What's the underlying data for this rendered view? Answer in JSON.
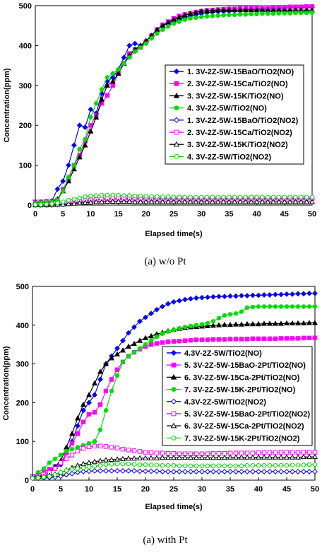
{
  "captions": [
    "(a)  w/o  Pt",
    "(a)  with  Pt"
  ],
  "chart_data": [
    {
      "type": "line",
      "title": "",
      "xlabel": "Elapsed time(s)",
      "ylabel": "Concentration(ppm)",
      "xlim": [
        0,
        50
      ],
      "ylim": [
        0,
        500
      ],
      "xticks": [
        0,
        5,
        10,
        15,
        20,
        25,
        30,
        35,
        40,
        45,
        50
      ],
      "yticks": [
        0,
        100,
        200,
        300,
        400,
        500
      ],
      "legend_position": "right",
      "x": [
        0,
        1,
        2,
        3,
        4,
        5,
        6,
        7,
        8,
        9,
        10,
        11,
        12,
        13,
        14,
        15,
        16,
        17,
        18,
        19,
        20,
        21,
        22,
        23,
        24,
        25,
        26,
        27,
        28,
        29,
        30,
        31,
        32,
        33,
        34,
        35,
        36,
        37,
        38,
        39,
        40,
        41,
        42,
        43,
        44,
        45,
        46,
        47,
        48,
        49,
        50
      ],
      "series": [
        {
          "name": "1. 3V-2Z-5W-15BaO/TiO2(NO)",
          "color": "#0000ff",
          "marker": "diamond",
          "filled": true,
          "values": [
            5,
            6,
            7,
            10,
            40,
            60,
            100,
            150,
            200,
            195,
            240,
            230,
            280,
            310,
            320,
            340,
            370,
            400,
            405,
            400,
            410,
            425,
            440,
            450,
            455,
            460,
            465,
            470,
            474,
            477,
            480,
            482,
            484,
            485,
            486,
            487,
            488,
            489,
            490,
            490,
            491,
            492,
            492,
            493,
            493,
            494,
            494,
            495,
            495,
            496,
            496
          ]
        },
        {
          "name": "2. 3V-2Z-5W-15Ca/TiO2(NO)",
          "color": "#ff00ff",
          "marker": "square",
          "filled": true,
          "values": [
            8,
            8,
            9,
            10,
            12,
            40,
            65,
            100,
            125,
            160,
            200,
            225,
            255,
            275,
            300,
            330,
            355,
            380,
            390,
            395,
            410,
            425,
            440,
            452,
            460,
            468,
            474,
            478,
            481,
            484,
            486,
            488,
            489,
            490,
            491,
            492,
            492,
            493,
            493,
            494,
            494,
            495,
            495,
            496,
            496,
            496,
            497,
            497,
            497,
            498,
            498
          ]
        },
        {
          "name": "3. 3V-2Z-5W-15K/TiO2(NO)",
          "color": "#000000",
          "marker": "triangle",
          "filled": true,
          "values": [
            6,
            7,
            8,
            10,
            15,
            35,
            60,
            90,
            120,
            150,
            185,
            220,
            265,
            300,
            310,
            330,
            355,
            375,
            390,
            400,
            412,
            425,
            440,
            450,
            458,
            465,
            471,
            476,
            480,
            483,
            486,
            487,
            488,
            489,
            489,
            489,
            489,
            489,
            489,
            489,
            489,
            489,
            489,
            489,
            489,
            489,
            489,
            489,
            489,
            489,
            489
          ]
        },
        {
          "name": "4. 3V-2Z-5W/TiO2(NO)",
          "color": "#00dd00",
          "marker": "circle",
          "filled": true,
          "values": [
            5,
            6,
            7,
            8,
            12,
            35,
            70,
            100,
            140,
            165,
            220,
            255,
            290,
            320,
            330,
            340,
            355,
            370,
            385,
            395,
            405,
            418,
            430,
            440,
            448,
            455,
            460,
            465,
            468,
            470,
            472,
            473,
            474,
            475,
            476,
            477,
            477,
            478,
            478,
            479,
            479,
            480,
            480,
            480,
            481,
            481,
            481,
            482,
            482,
            482,
            483
          ]
        },
        {
          "name": "1. 3V-2Z-5W-15BaO/TiO2(NO2)",
          "color": "#0000ff",
          "marker": "diamond",
          "filled": false,
          "values": [
            0,
            0,
            0,
            0,
            1,
            2,
            4,
            6,
            8,
            10,
            12,
            13,
            14,
            15,
            15,
            15,
            15,
            15,
            15,
            15,
            15,
            15,
            15,
            15,
            15,
            15,
            15,
            15,
            15,
            15,
            15,
            15,
            15,
            15,
            15,
            15,
            15,
            15,
            15,
            15,
            15,
            15,
            15,
            15,
            15,
            15,
            15,
            15,
            15,
            15,
            15
          ]
        },
        {
          "name": "2. 3V-2Z-5W-15Ca/TiO2(NO2)",
          "color": "#ff00ff",
          "marker": "square",
          "filled": false,
          "values": [
            0,
            0,
            0,
            1,
            2,
            3,
            5,
            7,
            9,
            11,
            13,
            14,
            15,
            16,
            17,
            17,
            17,
            17,
            17,
            17,
            17,
            17,
            17,
            17,
            17,
            17,
            17,
            17,
            17,
            17,
            17,
            17,
            17,
            17,
            17,
            17,
            17,
            17,
            17,
            17,
            17,
            17,
            17,
            17,
            17,
            17,
            17,
            17,
            17,
            17,
            17
          ]
        },
        {
          "name": "3. 3V-2Z-5W-15K/TiO2(NO2)",
          "color": "#000000",
          "marker": "triangle",
          "filled": false,
          "values": [
            0,
            0,
            0,
            0,
            1,
            2,
            3,
            4,
            5,
            6,
            7,
            8,
            8,
            9,
            9,
            9,
            9,
            9,
            8,
            8,
            8,
            8,
            8,
            8,
            8,
            8,
            8,
            8,
            8,
            8,
            8,
            8,
            8,
            8,
            8,
            8,
            8,
            8,
            8,
            8,
            8,
            8,
            8,
            8,
            8,
            8,
            8,
            8,
            8,
            8,
            8
          ]
        },
        {
          "name": "4. 3V-2Z-5W/TiO2(NO2)",
          "color": "#00dd00",
          "marker": "circle",
          "filled": false,
          "values": [
            1,
            1,
            2,
            3,
            5,
            8,
            12,
            15,
            18,
            21,
            23,
            24,
            25,
            25,
            25,
            25,
            24,
            24,
            23,
            23,
            22,
            22,
            21,
            21,
            21,
            20,
            20,
            20,
            20,
            20,
            20,
            20,
            20,
            20,
            20,
            20,
            20,
            20,
            20,
            20,
            20,
            20,
            20,
            20,
            20,
            20,
            20,
            20,
            20,
            20,
            20
          ]
        }
      ]
    },
    {
      "type": "line",
      "title": "",
      "xlabel": "Elapsed time(s)",
      "ylabel": "Concentration(ppm)",
      "xlim": [
        0,
        50
      ],
      "ylim": [
        0,
        500
      ],
      "xticks": [
        0,
        5,
        10,
        15,
        20,
        25,
        30,
        35,
        40,
        45,
        50
      ],
      "yticks": [
        0,
        100,
        200,
        300,
        400,
        500
      ],
      "legend_position": "right",
      "x": [
        0,
        1,
        2,
        3,
        4,
        5,
        6,
        7,
        8,
        9,
        10,
        11,
        12,
        13,
        14,
        15,
        16,
        17,
        18,
        19,
        20,
        21,
        22,
        23,
        24,
        25,
        26,
        27,
        28,
        29,
        30,
        31,
        32,
        33,
        34,
        35,
        36,
        37,
        38,
        39,
        40,
        41,
        42,
        43,
        44,
        45,
        46,
        47,
        48,
        49,
        50
      ],
      "series": [
        {
          "name": "4.3V-2Z-5W/TiO2(NO)",
          "color": "#0000ff",
          "marker": "diamond",
          "filled": true,
          "values": [
            10,
            12,
            15,
            20,
            30,
            40,
            70,
            100,
            140,
            180,
            200,
            220,
            260,
            300,
            320,
            340,
            360,
            380,
            395,
            410,
            420,
            430,
            440,
            448,
            455,
            460,
            463,
            466,
            468,
            470,
            471,
            472,
            473,
            474,
            474,
            475,
            475,
            476,
            476,
            477,
            477,
            478,
            478,
            479,
            479,
            480,
            480,
            481,
            481,
            482,
            482
          ]
        },
        {
          "name": "5. 3V-2Z-5W-15BaO-2Pt/TiO2(NO)",
          "color": "#ff00ff",
          "marker": "square",
          "filled": true,
          "values": [
            10,
            15,
            22,
            28,
            35,
            45,
            70,
            95,
            120,
            150,
            170,
            175,
            195,
            230,
            260,
            285,
            305,
            320,
            330,
            338,
            345,
            350,
            353,
            355,
            357,
            358,
            359,
            360,
            361,
            362,
            362,
            362,
            363,
            363,
            363,
            364,
            364,
            364,
            364,
            365,
            365,
            365,
            365,
            365,
            366,
            366,
            366,
            366,
            367,
            367,
            367
          ]
        },
        {
          "name": "6. 3V-2Z-5W-15Ca-2Pt/TiO2(NO)",
          "color": "#000000",
          "marker": "triangle",
          "filled": true,
          "values": [
            8,
            10,
            12,
            20,
            35,
            50,
            85,
            120,
            160,
            195,
            220,
            250,
            280,
            300,
            315,
            325,
            335,
            345,
            352,
            360,
            367,
            372,
            377,
            381,
            385,
            388,
            391,
            393,
            395,
            396,
            397,
            398,
            399,
            400,
            401,
            401,
            402,
            402,
            403,
            403,
            403,
            404,
            404,
            404,
            404,
            405,
            405,
            405,
            405,
            406,
            406
          ]
        },
        {
          "name": "7. 3V-2Z-5W-15K-2Pt/TiO2(NO)",
          "color": "#00dd00",
          "marker": "circle",
          "filled": true,
          "values": [
            10,
            20,
            30,
            45,
            55,
            65,
            75,
            80,
            85,
            90,
            95,
            100,
            130,
            180,
            230,
            270,
            305,
            320,
            330,
            340,
            350,
            360,
            370,
            378,
            384,
            388,
            392,
            395,
            398,
            400,
            402,
            405,
            410,
            418,
            425,
            428,
            430,
            435,
            445,
            447,
            448,
            448,
            448,
            448,
            448,
            448,
            448,
            448,
            448,
            448,
            448
          ]
        },
        {
          "name": "4.3V-2Z-5W/TiO2(NO2)",
          "color": "#0000ff",
          "marker": "diamond",
          "filled": false,
          "values": [
            5,
            5,
            6,
            7,
            8,
            10,
            14,
            17,
            20,
            22,
            23,
            24,
            24,
            24,
            24,
            24,
            24,
            24,
            24,
            23,
            23,
            23,
            23,
            22,
            22,
            22,
            22,
            22,
            22,
            22,
            22,
            22,
            22,
            22,
            22,
            22,
            22,
            22,
            22,
            22,
            22,
            22,
            22,
            22,
            22,
            22,
            22,
            22,
            22,
            22,
            22
          ]
        },
        {
          "name": "5. 3V-2Z-5W-15BaO-2Pt/TiO2(NO2)",
          "color": "#ff00ff",
          "marker": "square",
          "filled": false,
          "values": [
            10,
            12,
            15,
            20,
            30,
            45,
            55,
            65,
            75,
            82,
            86,
            88,
            88,
            87,
            85,
            83,
            80,
            78,
            76,
            74,
            72,
            71,
            70,
            70,
            69,
            69,
            68,
            68,
            68,
            68,
            68,
            68,
            69,
            69,
            69,
            70,
            70,
            70,
            70,
            70,
            71,
            71,
            71,
            71,
            72,
            72,
            72,
            72,
            72,
            72,
            72
          ]
        },
        {
          "name": "6. 3V-2Z-5W-15Ca-2Pt/TiO2(NO2)",
          "color": "#000000",
          "marker": "triangle",
          "filled": false,
          "values": [
            8,
            9,
            10,
            12,
            15,
            20,
            26,
            32,
            38,
            42,
            45,
            48,
            50,
            52,
            53,
            54,
            55,
            56,
            56,
            57,
            57,
            57,
            57,
            58,
            58,
            58,
            58,
            58,
            58,
            58,
            58,
            58,
            58,
            58,
            58,
            59,
            59,
            59,
            59,
            59,
            59,
            59,
            59,
            59,
            59,
            59,
            59,
            59,
            60,
            60,
            60
          ]
        },
        {
          "name": "7. 3V-2Z-5W-15K-2Pt/TiO2(NO2)",
          "color": "#00dd00",
          "marker": "circle",
          "filled": false,
          "values": [
            5,
            6,
            8,
            10,
            14,
            20,
            25,
            28,
            30,
            32,
            34,
            36,
            38,
            40,
            41,
            42,
            42,
            42,
            41,
            40,
            40,
            39,
            39,
            38,
            38,
            38,
            37,
            37,
            37,
            37,
            37,
            37,
            37,
            37,
            37,
            37,
            37,
            37,
            38,
            38,
            38,
            38,
            38,
            38,
            38,
            38,
            39,
            39,
            39,
            40,
            40
          ]
        }
      ]
    }
  ]
}
